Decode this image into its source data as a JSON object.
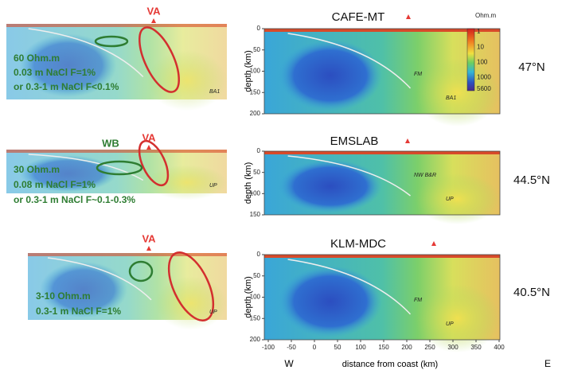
{
  "left_panels": [
    {
      "va": "VA",
      "notes": [
        "60 Ohm.m",
        "0.03 m NaCl F=1%",
        "or 0.3-1 m NaCl F<0.1%"
      ],
      "tags": [
        "BA1"
      ]
    },
    {
      "va": "VA",
      "wb": "WB",
      "notes": [
        "30 Ohm.m",
        "0.08 m NaCl F=1%",
        "or 0.3-1 m NaCl F~0.1-0.3%"
      ],
      "tags": [
        "UP"
      ]
    },
    {
      "va": "VA",
      "notes": [
        "3-10 Ohm.m",
        "0.3-1 m NaCl F=1%"
      ],
      "tags": [
        "UP"
      ]
    }
  ],
  "right_panels": [
    {
      "title": "CAFE-MT",
      "latitude": "47°N",
      "depth_ticks": [
        0,
        50,
        100,
        150,
        200
      ],
      "tags": [
        "BA1",
        "FM"
      ]
    },
    {
      "title": "EMSLAB",
      "latitude": "44.5°N",
      "depth_ticks": [
        0,
        50,
        100,
        150
      ],
      "tags": [
        "UP",
        "NW B&R"
      ]
    },
    {
      "title": "KLM-MDC",
      "latitude": "40.5°N",
      "depth_ticks": [
        0,
        50,
        100,
        150,
        200
      ],
      "tags": [
        "UP",
        "FM"
      ]
    }
  ],
  "y_axis_label": "depth (km)",
  "colorbar": {
    "unit": "Ohm.m",
    "ticks": [
      1,
      10,
      100,
      1000,
      5600
    ]
  },
  "x_axis": {
    "ticks": [
      -100,
      -50,
      0,
      50,
      100,
      150,
      200,
      250,
      300,
      350,
      400
    ],
    "label": "distance from coast (km)",
    "west": "W",
    "east": "E"
  }
}
